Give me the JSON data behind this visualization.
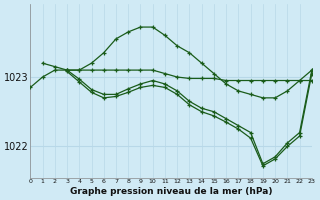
{
  "title": "Graphe pression niveau de la mer (hPa)",
  "bg_color": "#d0eaf5",
  "grid_color": "#b8d8e8",
  "line_color": "#1a5c1a",
  "x_min": 0,
  "x_max": 23,
  "y_min": 1021.55,
  "y_max": 1024.05,
  "yticks": [
    1022,
    1023
  ],
  "lines": [
    {
      "x": [
        0,
        1,
        2,
        3,
        4,
        5,
        6,
        7,
        8,
        9,
        10,
        11,
        12,
        13,
        14,
        15,
        16,
        17,
        18,
        19,
        20,
        21,
        22,
        23
      ],
      "y": [
        1022.85,
        1023.0,
        1023.1,
        1023.1,
        1023.1,
        1023.1,
        1023.1,
        1023.1,
        1023.1,
        1023.1,
        1023.1,
        1023.05,
        1023.0,
        1022.98,
        1022.98,
        1022.98,
        1022.95,
        1022.95,
        1022.95,
        1022.95,
        1022.95,
        1022.95,
        1022.95,
        1022.95
      ]
    },
    {
      "x": [
        1,
        2,
        3,
        4,
        5,
        6,
        7,
        8,
        9,
        10,
        11,
        12,
        13,
        14,
        15,
        16,
        17,
        18,
        19,
        20,
        21,
        22,
        23
      ],
      "y": [
        1023.2,
        1023.15,
        1023.1,
        1023.1,
        1023.2,
        1023.35,
        1023.55,
        1023.65,
        1023.72,
        1023.72,
        1023.6,
        1023.45,
        1023.35,
        1023.2,
        1023.05,
        1022.9,
        1022.8,
        1022.75,
        1022.7,
        1022.7,
        1022.8,
        1022.95,
        1023.1
      ]
    },
    {
      "x": [
        3,
        4,
        5,
        6,
        7,
        8,
        9,
        10,
        11,
        12,
        13,
        14,
        15,
        16,
        17,
        18,
        19,
        20,
        21,
        22,
        23
      ],
      "y": [
        1023.1,
        1022.97,
        1022.82,
        1022.75,
        1022.75,
        1022.83,
        1022.9,
        1022.95,
        1022.9,
        1022.8,
        1022.65,
        1022.55,
        1022.5,
        1022.4,
        1022.3,
        1022.2,
        1021.75,
        1021.85,
        1022.05,
        1022.2,
        1023.1
      ]
    },
    {
      "x": [
        3,
        4,
        5,
        6,
        7,
        8,
        9,
        10,
        11,
        12,
        13,
        14,
        15,
        16,
        17,
        18,
        19,
        20,
        21,
        22,
        23
      ],
      "y": [
        1023.08,
        1022.93,
        1022.78,
        1022.7,
        1022.72,
        1022.78,
        1022.85,
        1022.88,
        1022.85,
        1022.75,
        1022.6,
        1022.5,
        1022.44,
        1022.35,
        1022.25,
        1022.12,
        1021.72,
        1021.82,
        1022.0,
        1022.15,
        1023.05
      ]
    }
  ]
}
